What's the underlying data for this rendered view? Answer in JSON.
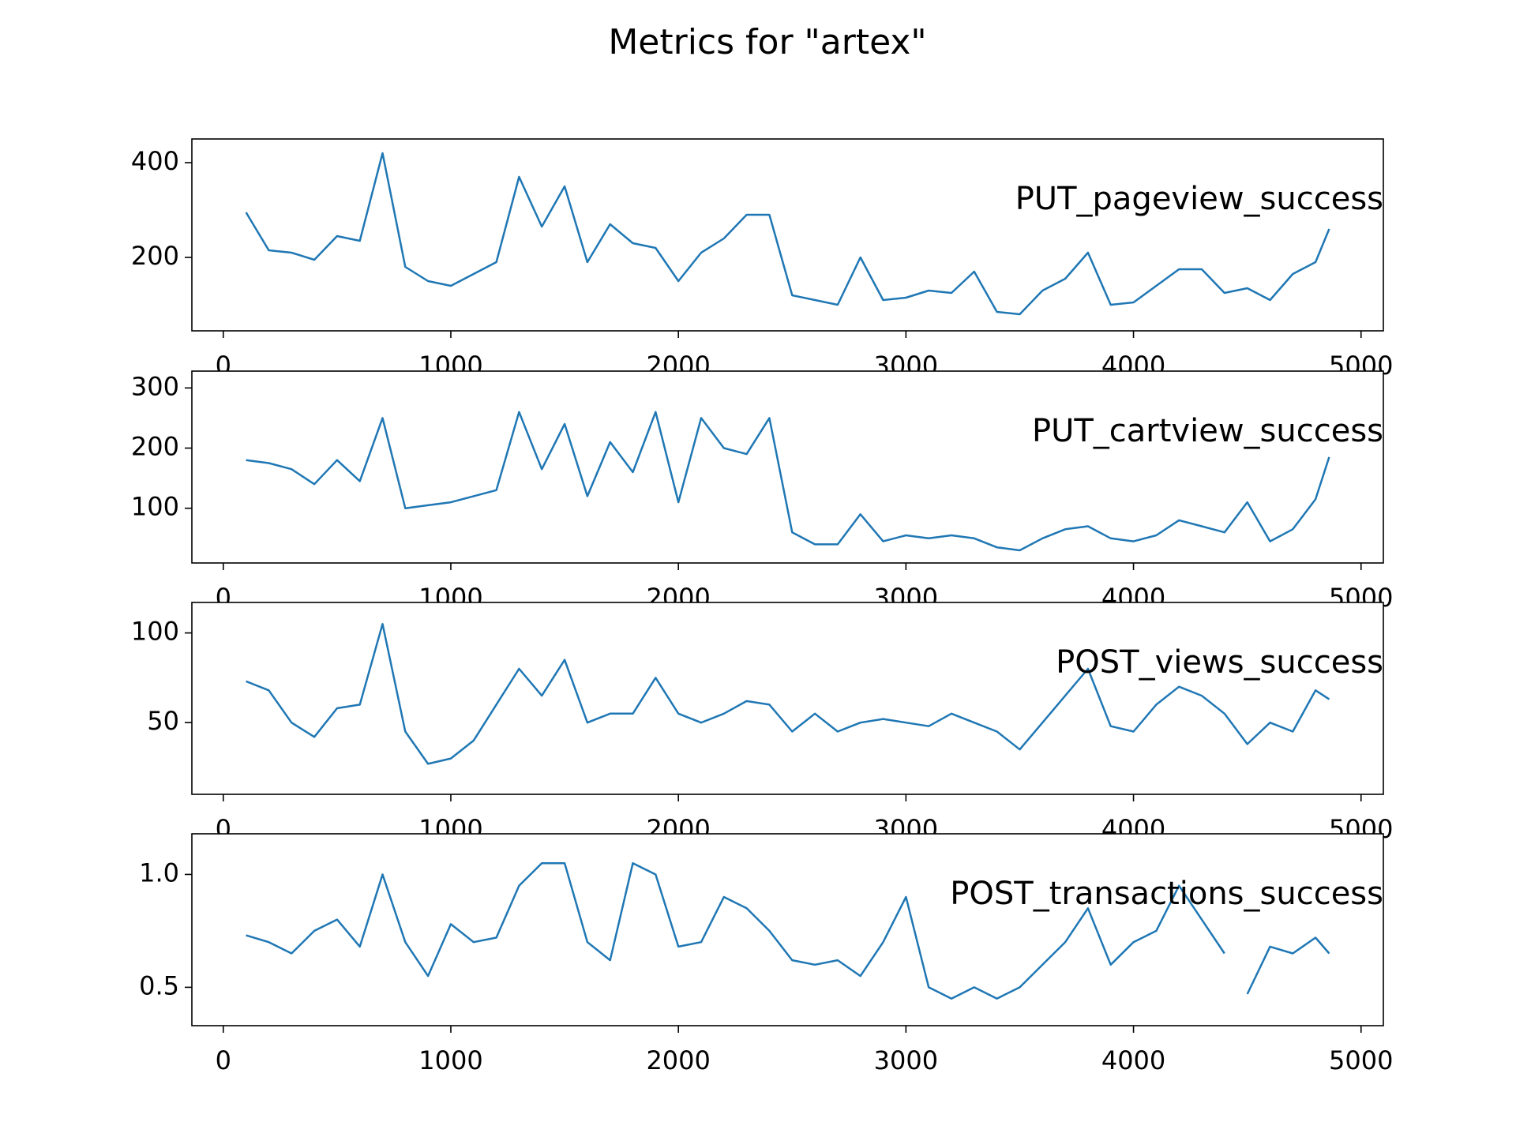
{
  "title": "Metrics for \"artex\"",
  "chart_data": [
    {
      "type": "line",
      "x": [
        100,
        200,
        300,
        400,
        500,
        600,
        700,
        800,
        900,
        1000,
        1100,
        1200,
        1300,
        1400,
        1500,
        1600,
        1700,
        1800,
        1900,
        2000,
        2100,
        2200,
        2300,
        2400,
        2500,
        2600,
        2700,
        2800,
        2900,
        3000,
        3100,
        3200,
        3300,
        3400,
        3500,
        3600,
        3700,
        3800,
        3900,
        4000,
        4100,
        4200,
        4300,
        4400,
        4500,
        4600,
        4700,
        4800,
        4860
      ],
      "series": [
        {
          "name": "PUT_pageview_success",
          "color": "#1f77b4",
          "values": [
            295,
            215,
            210,
            195,
            245,
            235,
            420,
            180,
            150,
            140,
            165,
            190,
            370,
            265,
            350,
            190,
            270,
            230,
            220,
            150,
            210,
            240,
            290,
            290,
            120,
            110,
            100,
            200,
            110,
            115,
            130,
            125,
            170,
            85,
            80,
            130,
            155,
            210,
            100,
            105,
            140,
            175,
            175,
            125,
            135,
            110,
            165,
            190,
            260
          ]
        }
      ],
      "xlim": [
        -138,
        5098
      ],
      "ylim": [
        45,
        450
      ],
      "xticks": [
        0,
        1000,
        2000,
        3000,
        4000,
        5000
      ],
      "yticks": [
        200,
        400
      ]
    },
    {
      "type": "line",
      "x": [
        100,
        200,
        300,
        400,
        500,
        600,
        700,
        800,
        900,
        1000,
        1100,
        1200,
        1300,
        1400,
        1500,
        1600,
        1700,
        1800,
        1900,
        2000,
        2100,
        2200,
        2300,
        2400,
        2500,
        2600,
        2700,
        2800,
        2900,
        3000,
        3100,
        3200,
        3300,
        3400,
        3500,
        3600,
        3700,
        3800,
        3900,
        4000,
        4100,
        4200,
        4300,
        4400,
        4500,
        4600,
        4700,
        4800,
        4860
      ],
      "series": [
        {
          "name": "PUT_cartview_success",
          "color": "#1f77b4",
          "values": [
            180,
            175,
            165,
            140,
            180,
            145,
            250,
            100,
            105,
            110,
            120,
            130,
            260,
            165,
            240,
            120,
            210,
            160,
            260,
            110,
            250,
            200,
            190,
            250,
            60,
            40,
            40,
            90,
            45,
            55,
            50,
            55,
            50,
            35,
            30,
            50,
            65,
            70,
            50,
            45,
            55,
            80,
            70,
            60,
            110,
            45,
            65,
            115,
            185
          ]
        }
      ],
      "xlim": [
        -138,
        5098
      ],
      "ylim": [
        9,
        328
      ],
      "xticks": [
        0,
        1000,
        2000,
        3000,
        4000,
        5000
      ],
      "yticks": [
        100,
        200,
        300
      ]
    },
    {
      "type": "line",
      "x": [
        100,
        200,
        300,
        400,
        500,
        600,
        700,
        800,
        900,
        1000,
        1100,
        1200,
        1300,
        1400,
        1500,
        1600,
        1700,
        1800,
        1900,
        2000,
        2100,
        2200,
        2300,
        2400,
        2500,
        2600,
        2700,
        2800,
        2900,
        3000,
        3100,
        3200,
        3300,
        3400,
        3500,
        3600,
        3700,
        3800,
        3900,
        4000,
        4100,
        4200,
        4300,
        4400,
        4500,
        4600,
        4700,
        4800,
        4860
      ],
      "series": [
        {
          "name": "POST_views_success",
          "color": "#1f77b4",
          "values": [
            73,
            68,
            50,
            42,
            58,
            60,
            105,
            45,
            27,
            30,
            40,
            60,
            80,
            65,
            85,
            50,
            55,
            55,
            75,
            55,
            50,
            55,
            62,
            60,
            45,
            55,
            45,
            50,
            52,
            50,
            48,
            55,
            50,
            45,
            35,
            50,
            65,
            80,
            48,
            45,
            60,
            70,
            65,
            55,
            38,
            50,
            45,
            68,
            63
          ]
        }
      ],
      "xlim": [
        -138,
        5098
      ],
      "ylim": [
        10,
        117
      ],
      "xticks": [
        0,
        1000,
        2000,
        3000,
        4000,
        5000
      ],
      "yticks": [
        50,
        100
      ]
    },
    {
      "type": "line",
      "x": [
        100,
        200,
        300,
        400,
        500,
        600,
        700,
        800,
        900,
        1000,
        1100,
        1200,
        1300,
        1400,
        1500,
        1600,
        1700,
        1800,
        1900,
        2000,
        2100,
        2200,
        2300,
        2400,
        2500,
        2600,
        2700,
        2800,
        2900,
        3000,
        3100,
        3200,
        3300,
        3400,
        3500,
        3600,
        3700,
        3800,
        3900,
        4000,
        4100,
        4200,
        4300,
        4400,
        4450,
        4500,
        4600,
        4700,
        4800,
        4860
      ],
      "series": [
        {
          "name": "POST_transactions_success",
          "color": "#1f77b4",
          "values": [
            0.73,
            0.7,
            0.65,
            0.75,
            0.8,
            0.68,
            1.0,
            0.7,
            0.55,
            0.78,
            0.7,
            0.72,
            0.95,
            1.05,
            1.05,
            0.7,
            0.62,
            1.05,
            1.0,
            0.68,
            0.7,
            0.9,
            0.85,
            0.75,
            0.62,
            0.6,
            0.62,
            0.55,
            0.7,
            0.9,
            0.5,
            0.45,
            0.5,
            0.45,
            0.5,
            0.6,
            0.7,
            0.85,
            0.6,
            0.7,
            0.75,
            0.95,
            0.8,
            0.65,
            null,
            0.47,
            0.68,
            0.65,
            0.72,
            0.65
          ]
        }
      ],
      "xlim": [
        -138,
        5098
      ],
      "ylim": [
        0.33,
        1.18
      ],
      "xticks": [
        0,
        1000,
        2000,
        3000,
        4000,
        5000
      ],
      "yticks": [
        {
          "value": 0.5,
          "label": "0.5"
        },
        {
          "value": 1.0,
          "label": "1.0"
        }
      ]
    }
  ]
}
